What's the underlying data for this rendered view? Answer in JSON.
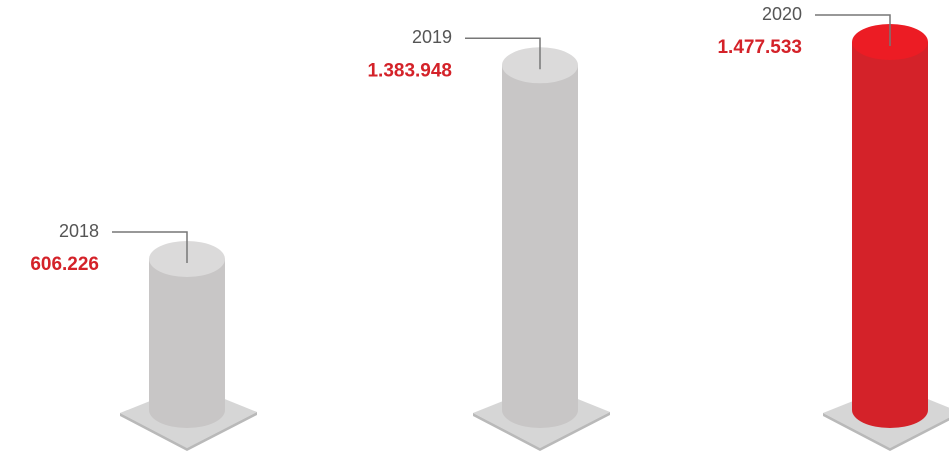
{
  "chart_data": {
    "type": "cylinder_bar",
    "categories": [
      "2018",
      "2019",
      "2020"
    ],
    "values": [
      606226,
      1383948,
      1477533
    ],
    "value_labels": [
      "606.226",
      "1.383.948",
      "1.477.533"
    ],
    "colors": [
      "#c8c6c6",
      "#c8c6c6",
      "#d42229"
    ]
  }
}
